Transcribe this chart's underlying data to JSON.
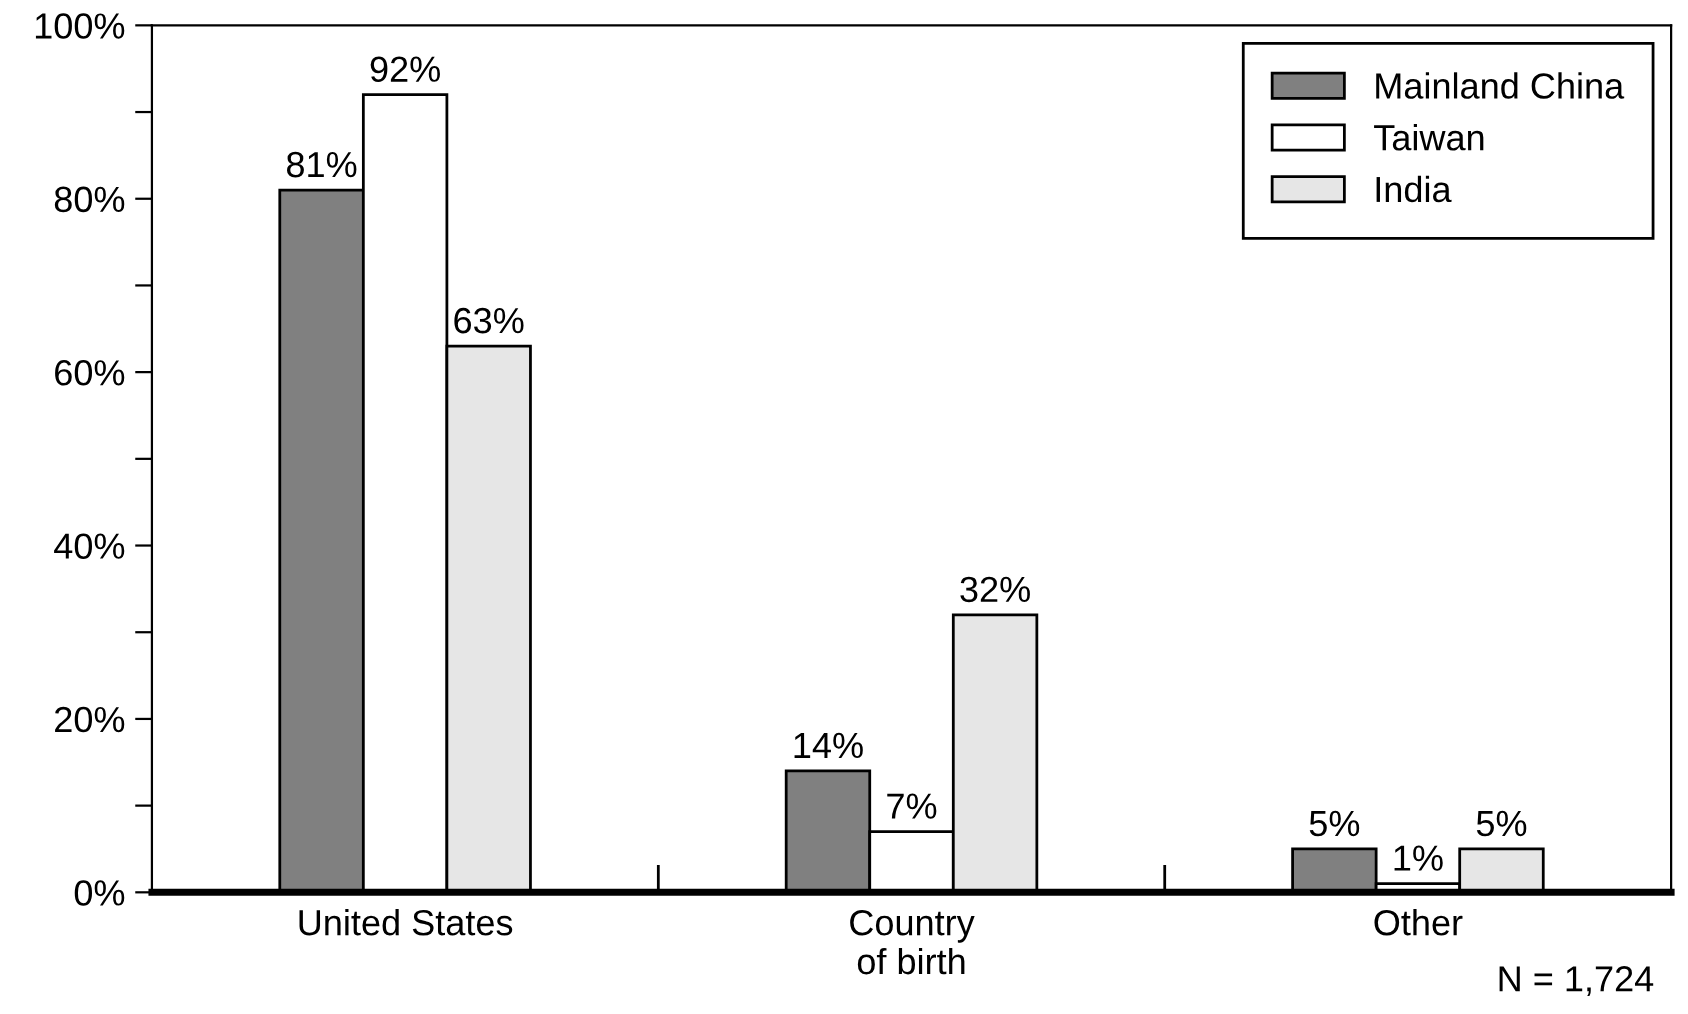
{
  "chart_data": {
    "type": "bar",
    "categories": [
      "United States",
      "Country\nof birth",
      "Other"
    ],
    "series": [
      {
        "name": "Mainland China",
        "color": "#808080",
        "values": [
          81,
          14,
          5
        ],
        "value_labels": [
          "81%",
          "14%",
          "5%"
        ]
      },
      {
        "name": "Taiwan",
        "color": "#ffffff",
        "values": [
          92,
          7,
          1
        ],
        "value_labels": [
          "92%",
          "7%",
          "1%"
        ]
      },
      {
        "name": "India",
        "color": "#e6e6e6",
        "values": [
          63,
          32,
          5
        ],
        "value_labels": [
          "63%",
          "32%",
          "5%"
        ]
      }
    ],
    "ylim": [
      0,
      100
    ],
    "yticks": [
      {
        "value": 0,
        "label": "0%"
      },
      {
        "value": 10,
        "label": null
      },
      {
        "value": 20,
        "label": "20%"
      },
      {
        "value": 30,
        "label": null
      },
      {
        "value": 40,
        "label": "40%"
      },
      {
        "value": 50,
        "label": null
      },
      {
        "value": 60,
        "label": "60%"
      },
      {
        "value": 70,
        "label": null
      },
      {
        "value": 80,
        "label": "80%"
      },
      {
        "value": 90,
        "label": null
      },
      {
        "value": 100,
        "label": "100%"
      }
    ],
    "data_labels": true,
    "legend": "top right",
    "grid": false,
    "annotations": [
      "N = 1,724"
    ]
  }
}
